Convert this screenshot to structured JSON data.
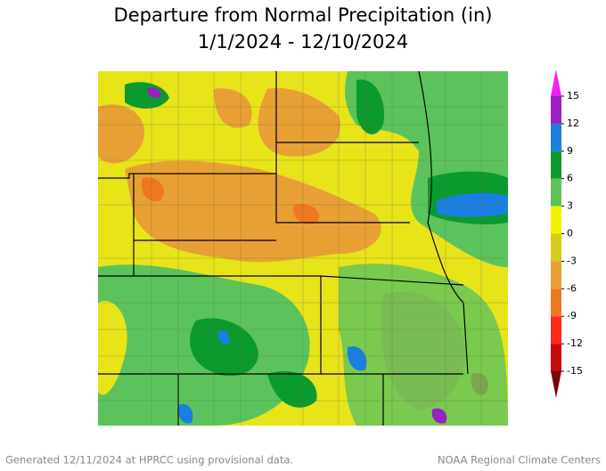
{
  "title": "Departure from Normal Precipitation (in)",
  "subtitle": "1/1/2024 - 12/10/2024",
  "legend": {
    "ticks": [
      15,
      12,
      9,
      6,
      3,
      0,
      -3,
      -6,
      -9,
      -12,
      -15
    ],
    "colors": [
      "#9a1fc4",
      "#1a7fe0",
      "#0b9a2e",
      "#5cc35c",
      "#f2f200",
      "#d6cc1a",
      "#e8a035",
      "#f07820",
      "#ff2a1a",
      "#c80a0a"
    ],
    "over_color": "#f020f0",
    "under_color": "#7a0606"
  },
  "footer": {
    "left": "Generated 12/11/2024 at HPRCC using provisional data.",
    "right": "NOAA Regional Climate Centers"
  }
}
